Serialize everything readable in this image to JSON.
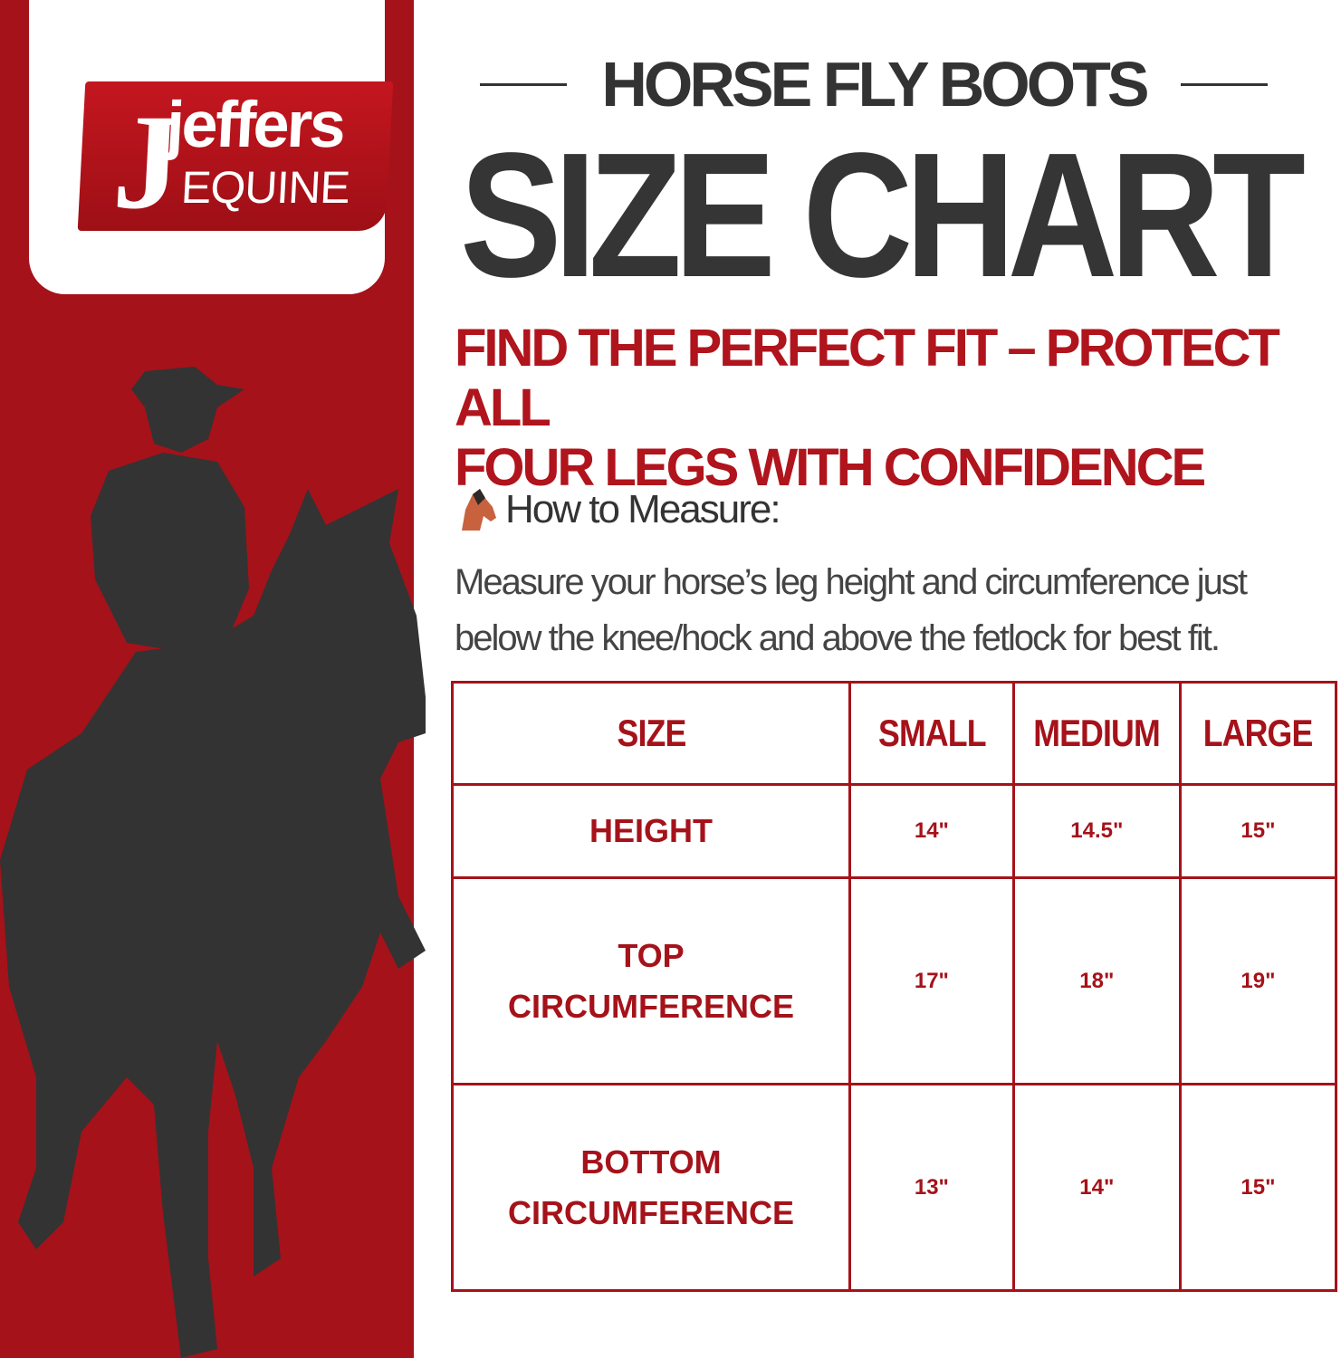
{
  "brand": {
    "logo_main": "jeffers",
    "logo_sub": "EQUINE",
    "accent": "#a5121a"
  },
  "header": {
    "eyebrow": "HORSE FLY BOOTS",
    "title": "SIZE CHART"
  },
  "subtitle": {
    "line1": "FIND THE PERFECT FIT – PROTECT ALL",
    "line2": "FOUR LEGS WITH CONFIDENCE"
  },
  "measure": {
    "icon": "horse-head-icon",
    "heading": "How to Measure:",
    "body": "Measure your horse’s leg height and circumference just below the knee/hock and above the fetlock for best fit."
  },
  "table": {
    "headers": [
      "SIZE",
      "SMALL",
      "MEDIUM",
      "LARGE"
    ],
    "rows": [
      {
        "label": "HEIGHT",
        "values": [
          "14\"",
          "14.5\"",
          "15\""
        ]
      },
      {
        "label": "TOP CIRCUMFERENCE",
        "values": [
          "17\"",
          "18\"",
          "19\""
        ]
      },
      {
        "label": "BOTTOM CIRCUMFERENCE",
        "values": [
          "13\"",
          "14\"",
          "15\""
        ]
      }
    ]
  }
}
